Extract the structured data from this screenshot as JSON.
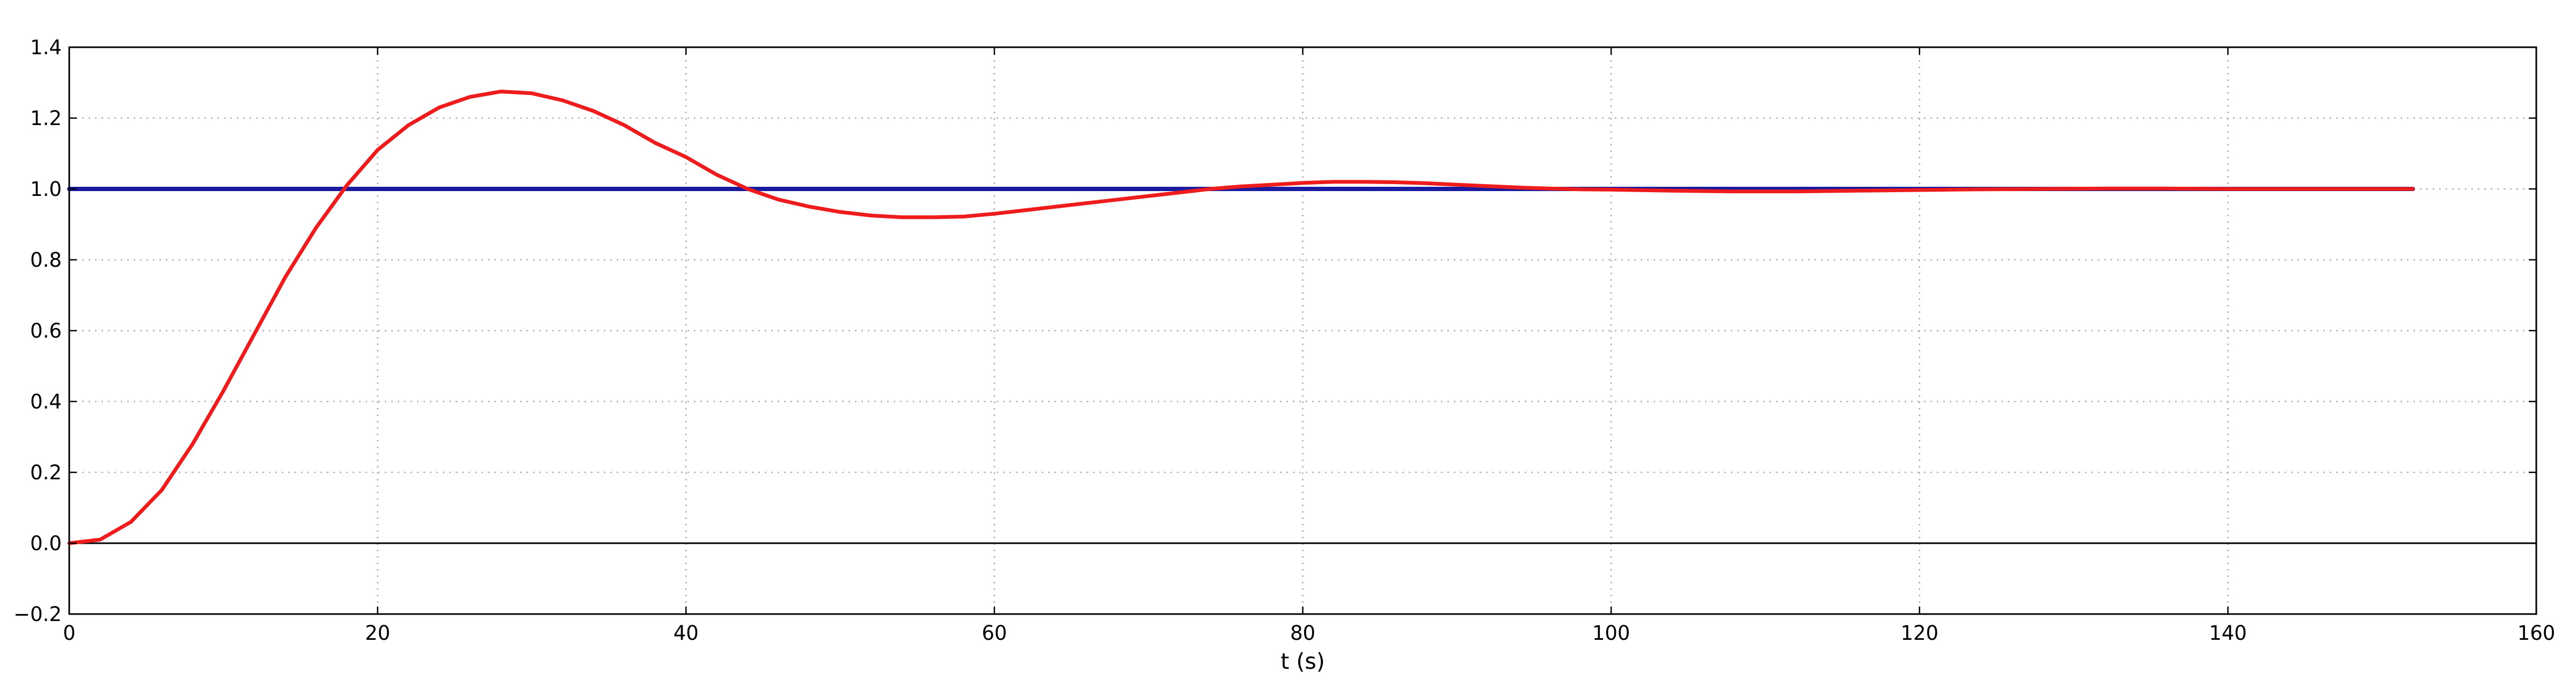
{
  "chart_data": {
    "type": "line",
    "title": "",
    "xlabel": "t (s)",
    "ylabel": "",
    "xlim": [
      0,
      160
    ],
    "ylim": [
      -0.2,
      1.4
    ],
    "xticks": [
      0,
      20,
      40,
      60,
      80,
      100,
      120,
      140,
      160
    ],
    "yticks": [
      -0.2,
      0.0,
      0.2,
      0.4,
      0.6,
      0.8,
      1.0,
      1.2,
      1.4
    ],
    "xtick_labels": [
      "0",
      "20",
      "40",
      "60",
      "80",
      "100",
      "120",
      "140",
      "160"
    ],
    "ytick_labels": [
      "−0.2",
      "0.0",
      "0.2",
      "0.4",
      "0.6",
      "0.8",
      "1.0",
      "1.2",
      "1.4"
    ],
    "grid": true,
    "reference_lines": [
      {
        "y": 0.0,
        "color": "#000000"
      }
    ],
    "series": [
      {
        "color": "#1a1aa0",
        "x": [
          0,
          152
        ],
        "y": [
          1.0,
          1.0
        ]
      },
      {
        "color": "#ee1c1c",
        "x": [
          0,
          2,
          4,
          6,
          8,
          10,
          12,
          14,
          16,
          18,
          20,
          22,
          24,
          26,
          28,
          30,
          32,
          34,
          36,
          38,
          40,
          42,
          44,
          46,
          48,
          50,
          52,
          54,
          56,
          58,
          60,
          62,
          64,
          66,
          68,
          70,
          72,
          74,
          76,
          78,
          80,
          82,
          84,
          86,
          88,
          90,
          92,
          94,
          96,
          98,
          100,
          104,
          108,
          112,
          116,
          120,
          124,
          128,
          132,
          136,
          140,
          144,
          148,
          152
        ],
        "y": [
          0.0,
          0.01,
          0.06,
          0.15,
          0.28,
          0.43,
          0.59,
          0.75,
          0.89,
          1.01,
          1.11,
          1.18,
          1.23,
          1.26,
          1.275,
          1.27,
          1.25,
          1.22,
          1.18,
          1.13,
          1.09,
          1.04,
          1.0,
          0.97,
          0.95,
          0.935,
          0.925,
          0.92,
          0.92,
          0.922,
          0.93,
          0.94,
          0.95,
          0.96,
          0.97,
          0.98,
          0.99,
          1.0,
          1.007,
          1.012,
          1.017,
          1.02,
          1.02,
          1.019,
          1.016,
          1.012,
          1.008,
          1.004,
          1.001,
          0.999,
          0.998,
          0.995,
          0.993,
          0.993,
          0.995,
          0.997,
          0.999,
          1.0,
          1.001,
          1.001,
          1.0,
          1.0,
          1.0,
          1.0
        ]
      }
    ]
  }
}
